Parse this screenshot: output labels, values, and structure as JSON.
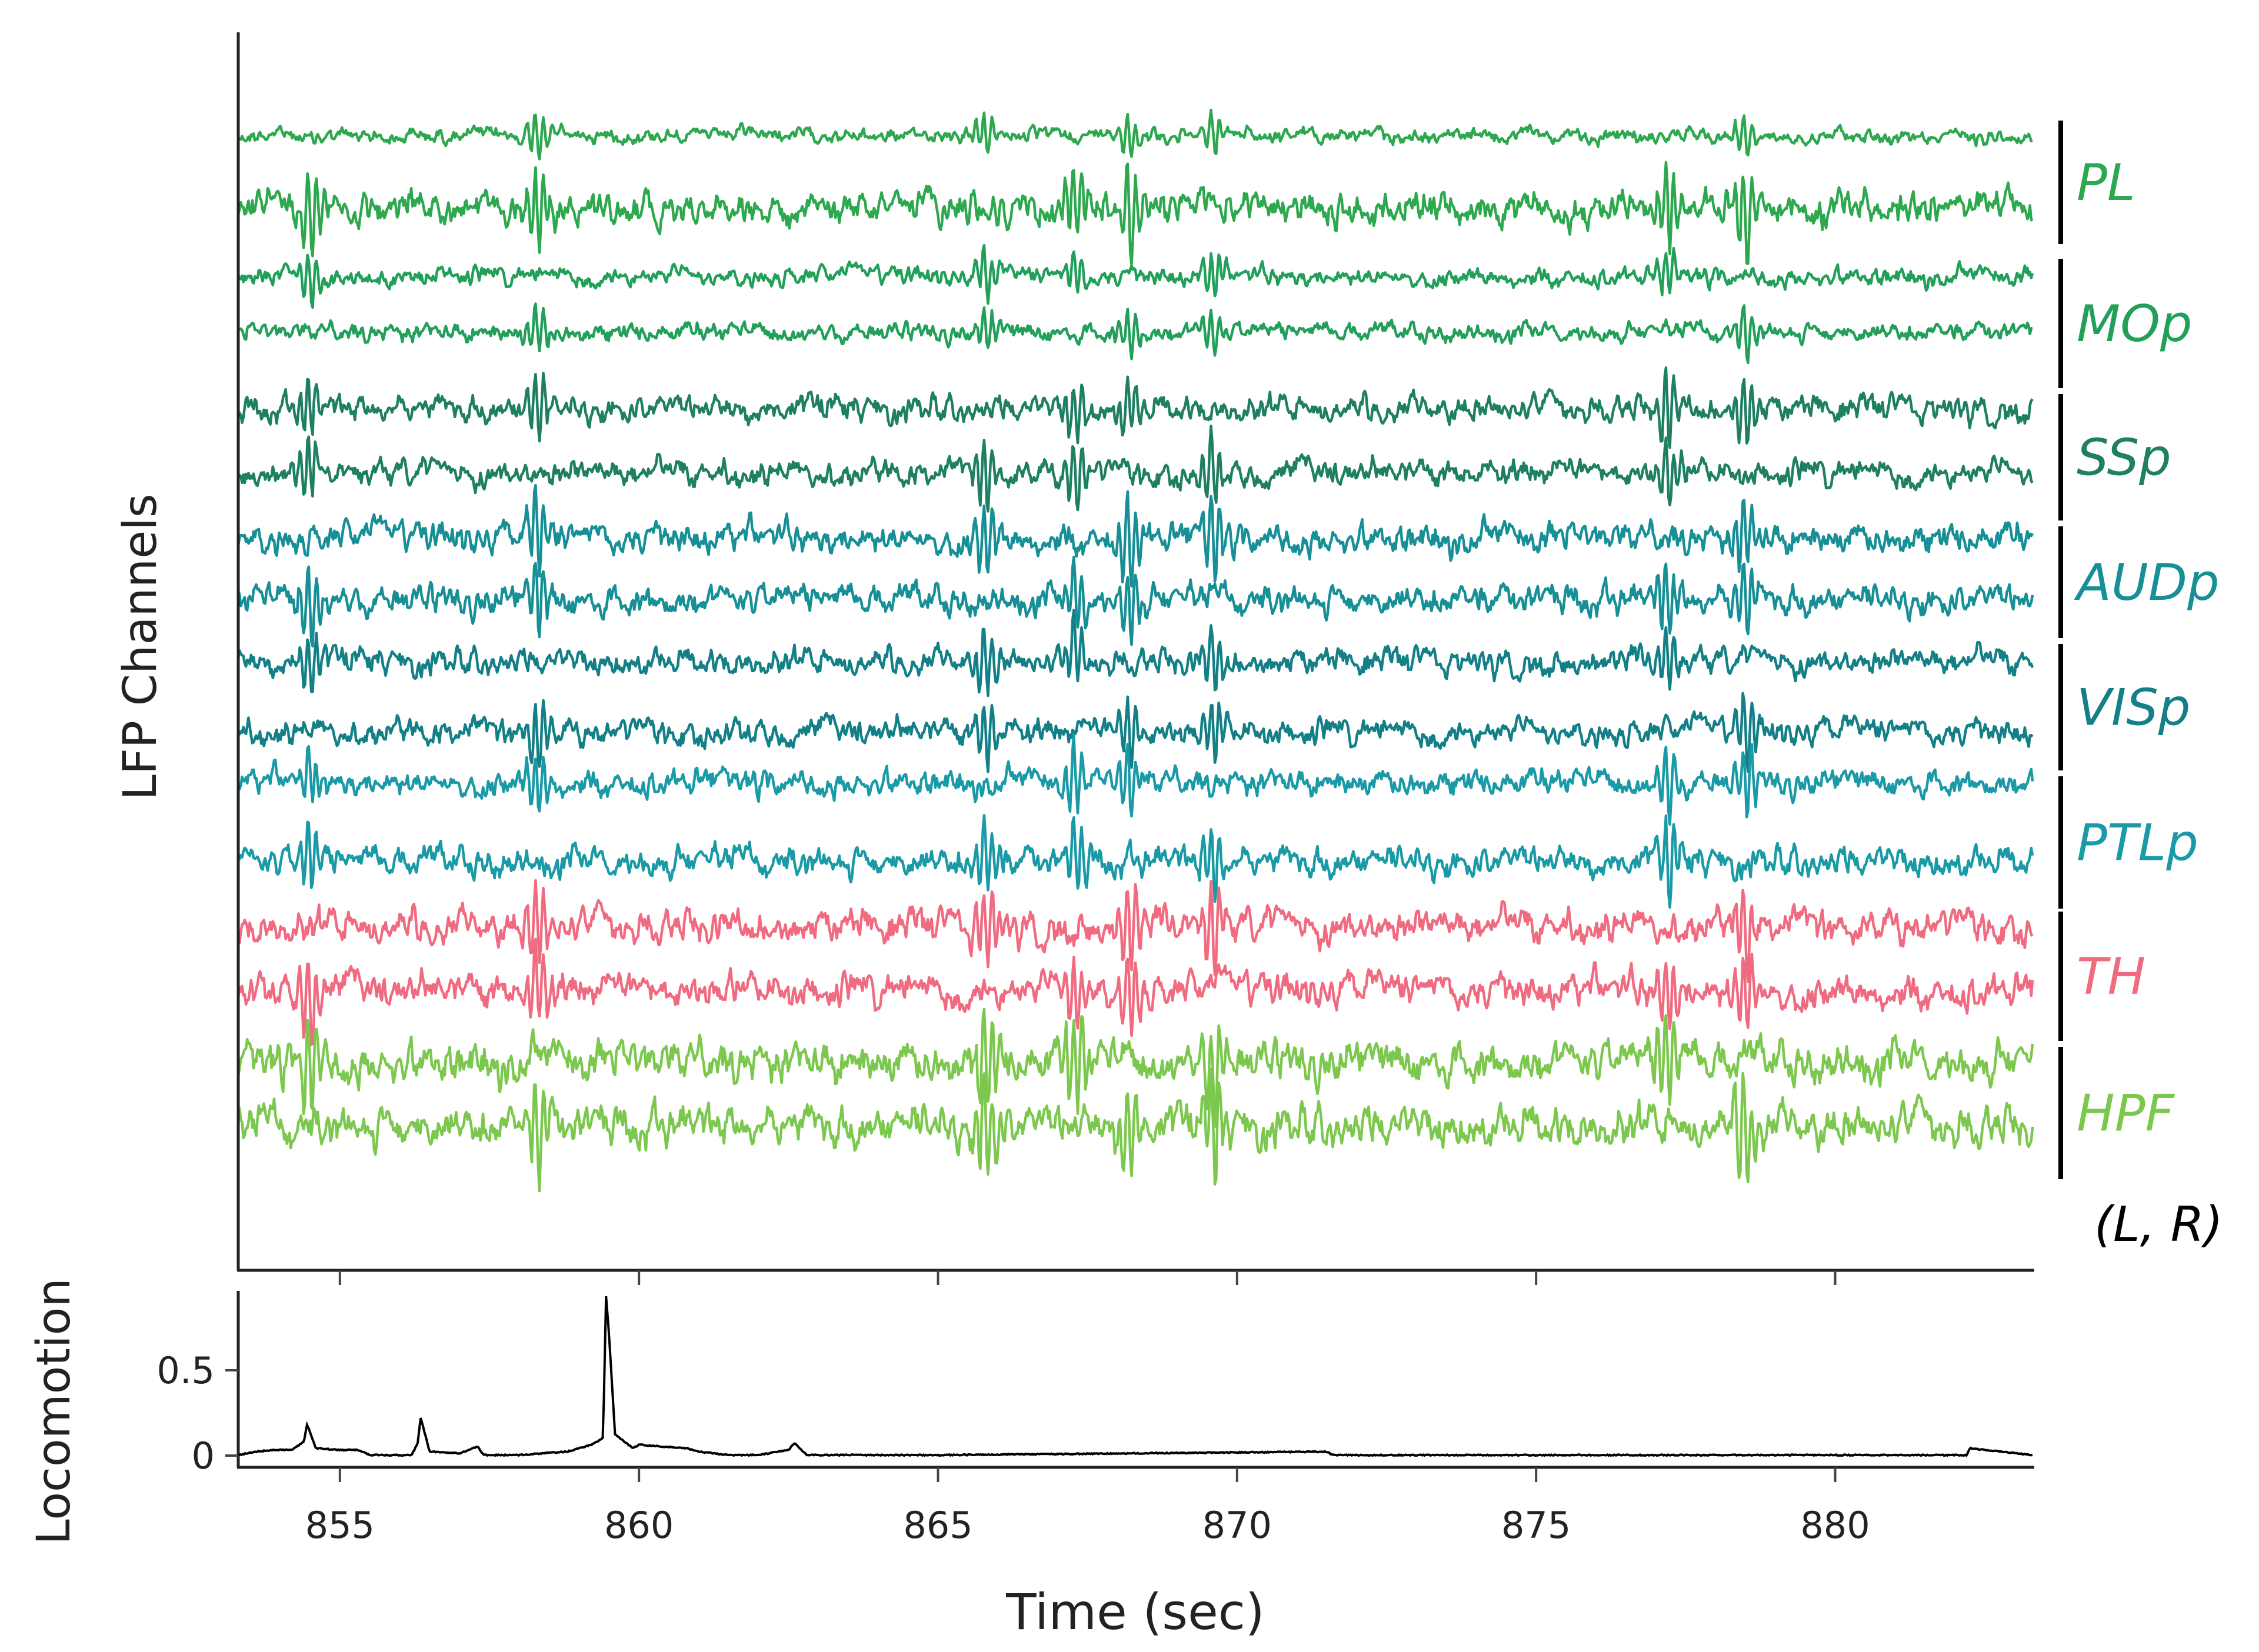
{
  "chart_data": [
    {
      "type": "line",
      "panel": "lfp",
      "title": "",
      "xlabel": "",
      "ylabel": "LFP Channels",
      "xlim": [
        853.3,
        883.3
      ],
      "xticks": [
        855,
        860,
        865,
        870,
        875,
        880
      ],
      "grid": false,
      "hemisphere_note": "(L, R)",
      "regions": [
        {
          "name": "PL",
          "color": "#2ea84e",
          "channels": [
            "L",
            "R"
          ]
        },
        {
          "name": "MOp",
          "color": "#22a05a",
          "channels": [
            "L",
            "R"
          ]
        },
        {
          "name": "SSp",
          "color": "#1e7f62",
          "channels": [
            "L",
            "R"
          ]
        },
        {
          "name": "AUDp",
          "color": "#178f96",
          "channels": [
            "L",
            "R"
          ]
        },
        {
          "name": "VISp",
          "color": "#137f86",
          "channels": [
            "L",
            "R"
          ]
        },
        {
          "name": "PTLp",
          "color": "#1a9aa6",
          "channels": [
            "L",
            "R"
          ]
        },
        {
          "name": "TH",
          "color": "#f06b80",
          "channels": [
            "L",
            "R"
          ]
        },
        {
          "name": "HPF",
          "color": "#7cc84e",
          "channels": [
            "L",
            "R"
          ]
        }
      ],
      "notable_events_sec": [
        854.5,
        858.3,
        865.8,
        867.3,
        868.2,
        869.6,
        877.2,
        878.5
      ]
    },
    {
      "type": "line",
      "panel": "locomotion",
      "title": "",
      "xlabel": "Time (sec)",
      "ylabel": "Locomotion",
      "xlim": [
        853.3,
        883.3
      ],
      "ylim": [
        -0.03,
        0.95
      ],
      "xticks": [
        855,
        860,
        865,
        870,
        875,
        880
      ],
      "yticks": [
        0,
        0.5
      ],
      "grid": false,
      "color": "#000000",
      "x": [
        853.3,
        853.6,
        853.9,
        854.2,
        854.4,
        854.45,
        854.6,
        855.0,
        855.3,
        855.5,
        856.2,
        856.3,
        856.35,
        856.5,
        857.0,
        857.3,
        857.4,
        858.0,
        858.8,
        859.2,
        859.4,
        859.45,
        859.5,
        859.6,
        859.9,
        860.0,
        860.4,
        860.8,
        861.0,
        861.5,
        862.0,
        862.5,
        862.6,
        862.8,
        865.0,
        871.5,
        871.6,
        875.0,
        882.2,
        882.25,
        883.3
      ],
      "y": [
        0.0,
        0.02,
        0.03,
        0.03,
        0.08,
        0.18,
        0.04,
        0.03,
        0.03,
        0.0,
        0.0,
        0.07,
        0.22,
        0.02,
        0.01,
        0.05,
        0.0,
        0.0,
        0.02,
        0.06,
        0.1,
        0.93,
        0.7,
        0.12,
        0.04,
        0.06,
        0.05,
        0.04,
        0.02,
        0.0,
        0.0,
        0.03,
        0.07,
        0.0,
        0.0,
        0.02,
        0.0,
        0.0,
        0.0,
        0.04,
        0.0
      ]
    }
  ],
  "labels": {
    "lfp_ylabel": "LFP Channels",
    "loco_ylabel": "Locomotion",
    "xlabel": "Time (sec)",
    "hemi_note": "(L, R)",
    "xticks": [
      "855",
      "860",
      "865",
      "870",
      "875",
      "880"
    ],
    "loco_yticks": [
      "0.5",
      "0"
    ],
    "regions": [
      "PL",
      "MOp",
      "SSp",
      "AUDp",
      "VISp",
      "PTLp",
      "TH",
      "HPF"
    ]
  }
}
